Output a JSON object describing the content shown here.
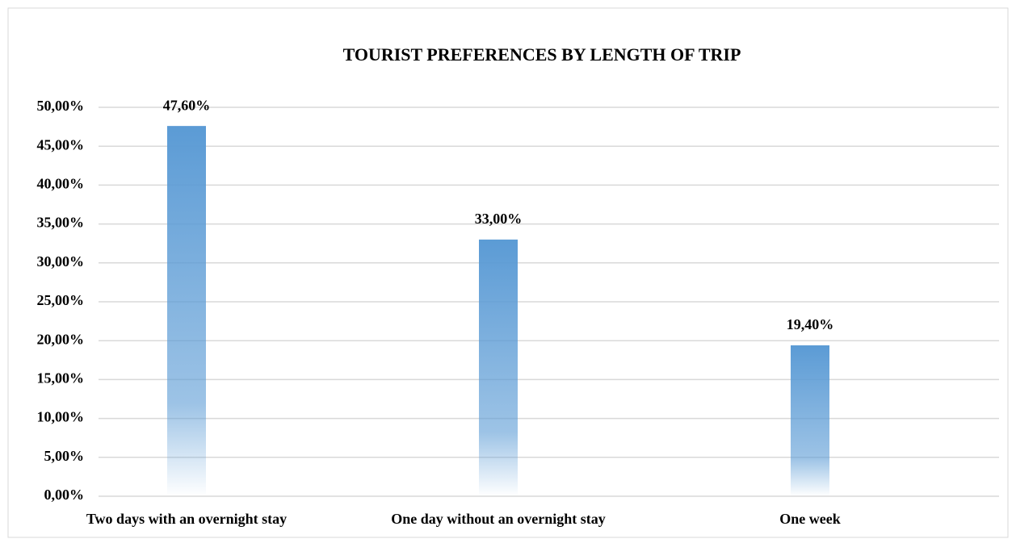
{
  "chart_data": {
    "type": "bar",
    "title": "TOURIST PREFERENCES BY LENGTH OF TRIP",
    "categories": [
      "Two days with an overnight stay",
      "One day without an overnight stay",
      "One week"
    ],
    "values": [
      47.6,
      33,
      19.4
    ],
    "value_labels": [
      "47,60%",
      "33,00%",
      "19,40%"
    ],
    "color": "#5b9bd5",
    "ylim": [
      0,
      50
    ],
    "yticks": [
      {
        "value": 0,
        "label": "0,00%"
      },
      {
        "value": 5,
        "label": "5,00%"
      },
      {
        "value": 10,
        "label": "10,00%"
      },
      {
        "value": 15,
        "label": "15,00%"
      },
      {
        "value": 20,
        "label": "20,00%"
      },
      {
        "value": 25,
        "label": "25,00%"
      },
      {
        "value": 30,
        "label": "30,00%"
      },
      {
        "value": 35,
        "label": "35,00%"
      },
      {
        "value": 40,
        "label": "40,00%"
      },
      {
        "value": 45,
        "label": "45,00%"
      },
      {
        "value": 50,
        "label": "50,00%"
      }
    ],
    "grid": true
  }
}
